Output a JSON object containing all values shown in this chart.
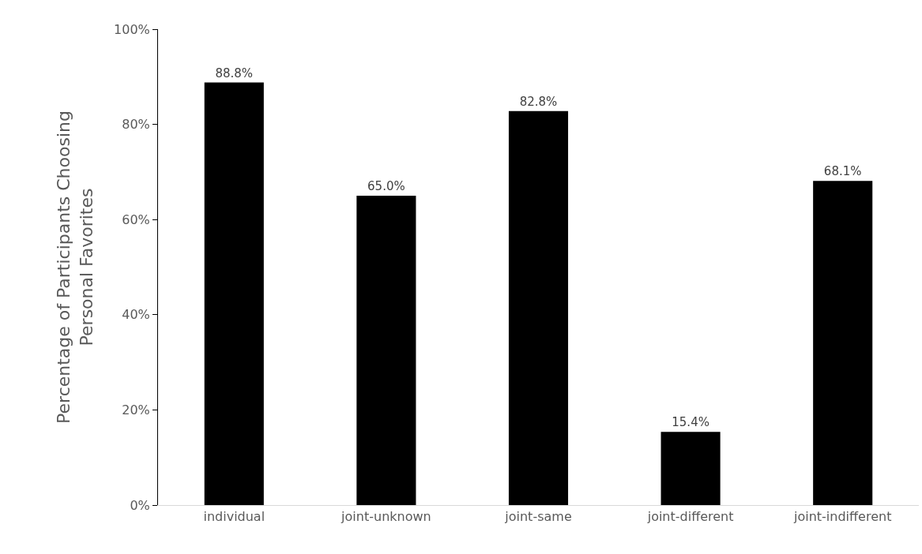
{
  "chart_data": {
    "type": "bar",
    "ylabel": "Percentage of Participants Choosing Personal Favorites",
    "categories": [
      "individual",
      "joint-unknown",
      "joint-same",
      "joint-different",
      "joint-indifferent"
    ],
    "values": [
      88.8,
      65.0,
      82.8,
      15.4,
      68.1
    ],
    "value_labels": [
      "88.8%",
      "65.0%",
      "82.8%",
      "15.4%",
      "68.1%"
    ],
    "color": "#000000",
    "ylim": [
      0,
      100
    ],
    "yticks": [
      {
        "value": 0,
        "label": "0%"
      },
      {
        "value": 20,
        "label": "20%"
      },
      {
        "value": 40,
        "label": "40%"
      },
      {
        "value": 60,
        "label": "60%"
      },
      {
        "value": 80,
        "label": "80%"
      },
      {
        "value": 100,
        "label": "100%"
      }
    ],
    "grid": false
  }
}
